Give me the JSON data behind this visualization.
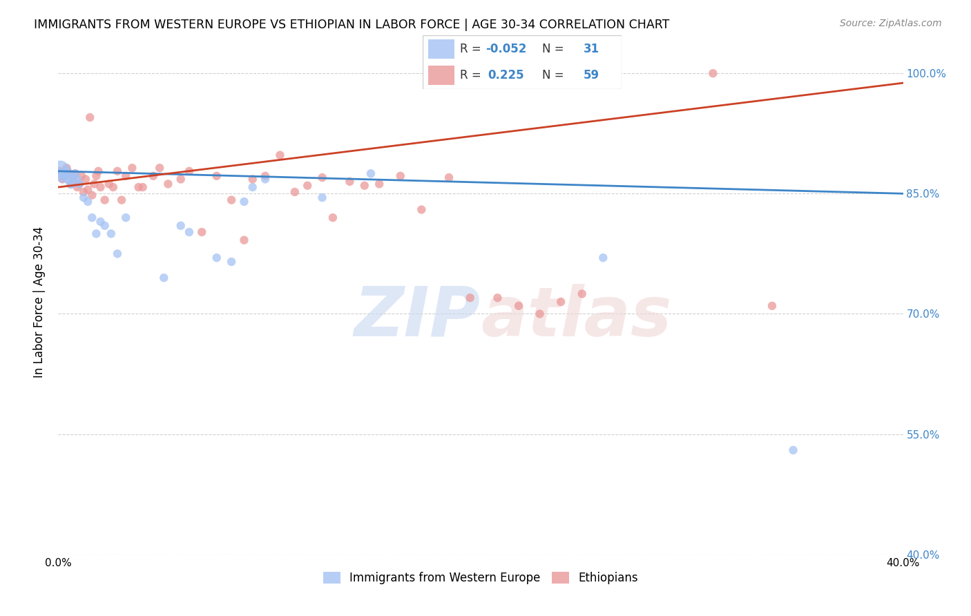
{
  "title": "IMMIGRANTS FROM WESTERN EUROPE VS ETHIOPIAN IN LABOR FORCE | AGE 30-34 CORRELATION CHART",
  "source": "Source: ZipAtlas.com",
  "ylabel": "In Labor Force | Age 30-34",
  "xlim": [
    0.0,
    0.4
  ],
  "ylim": [
    0.4,
    1.03
  ],
  "yticks": [
    0.4,
    0.55,
    0.7,
    0.85,
    1.0
  ],
  "ytick_labels": [
    "40.0%",
    "55.0%",
    "70.0%",
    "85.0%",
    "100.0%"
  ],
  "xticks": [
    0.0,
    0.05,
    0.1,
    0.15,
    0.2,
    0.25,
    0.3,
    0.35,
    0.4
  ],
  "xtick_labels": [
    "0.0%",
    "",
    "",
    "",
    "",
    "",
    "",
    "",
    "40.0%"
  ],
  "blue_color": "#a4c2f4",
  "pink_color": "#ea9999",
  "blue_line_color": "#3d85c8",
  "pink_line_color": "#cc4125",
  "legend_blue_R": "-0.052",
  "legend_blue_N": "31",
  "legend_pink_R": "0.225",
  "legend_pink_N": "59",
  "watermark_zip": "ZIP",
  "watermark_atlas": "atlas",
  "blue_scatter_x": [
    0.001,
    0.002,
    0.003,
    0.004,
    0.005,
    0.006,
    0.007,
    0.008,
    0.009,
    0.01,
    0.012,
    0.014,
    0.016,
    0.018,
    0.02,
    0.022,
    0.025,
    0.028,
    0.032,
    0.05,
    0.058,
    0.062,
    0.075,
    0.082,
    0.088,
    0.092,
    0.098,
    0.125,
    0.148,
    0.258,
    0.348
  ],
  "blue_scatter_y": [
    0.88,
    0.872,
    0.875,
    0.878,
    0.868,
    0.862,
    0.87,
    0.875,
    0.868,
    0.862,
    0.845,
    0.84,
    0.82,
    0.8,
    0.815,
    0.81,
    0.8,
    0.775,
    0.82,
    0.745,
    0.81,
    0.802,
    0.77,
    0.765,
    0.84,
    0.858,
    0.868,
    0.845,
    0.875,
    0.77,
    0.53
  ],
  "blue_scatter_sizes": [
    350,
    200,
    130,
    100,
    120,
    100,
    90,
    85,
    80,
    80,
    80,
    80,
    80,
    80,
    80,
    80,
    80,
    80,
    80,
    80,
    80,
    80,
    80,
    80,
    80,
    80,
    80,
    80,
    80,
    80,
    80
  ],
  "pink_scatter_x": [
    0.001,
    0.002,
    0.003,
    0.004,
    0.005,
    0.006,
    0.007,
    0.008,
    0.009,
    0.01,
    0.011,
    0.012,
    0.013,
    0.014,
    0.015,
    0.016,
    0.017,
    0.018,
    0.019,
    0.02,
    0.022,
    0.024,
    0.026,
    0.028,
    0.03,
    0.032,
    0.035,
    0.038,
    0.04,
    0.045,
    0.048,
    0.052,
    0.058,
    0.062,
    0.068,
    0.075,
    0.082,
    0.088,
    0.092,
    0.098,
    0.105,
    0.112,
    0.118,
    0.125,
    0.13,
    0.138,
    0.145,
    0.152,
    0.162,
    0.172,
    0.185,
    0.195,
    0.208,
    0.218,
    0.228,
    0.238,
    0.248,
    0.31,
    0.338
  ],
  "pink_scatter_y": [
    0.878,
    0.868,
    0.872,
    0.882,
    0.876,
    0.862,
    0.868,
    0.875,
    0.858,
    0.862,
    0.872,
    0.852,
    0.868,
    0.855,
    0.945,
    0.848,
    0.862,
    0.872,
    0.878,
    0.858,
    0.842,
    0.862,
    0.858,
    0.878,
    0.842,
    0.872,
    0.882,
    0.858,
    0.858,
    0.872,
    0.882,
    0.862,
    0.868,
    0.878,
    0.802,
    0.872,
    0.842,
    0.792,
    0.868,
    0.872,
    0.898,
    0.852,
    0.86,
    0.87,
    0.82,
    0.865,
    0.86,
    0.862,
    0.872,
    0.83,
    0.87,
    0.72,
    0.72,
    0.71,
    0.7,
    0.715,
    0.725,
    1.0,
    0.71
  ],
  "pink_scatter_sizes": [
    80,
    80,
    80,
    80,
    80,
    80,
    80,
    80,
    80,
    80,
    80,
    80,
    80,
    80,
    80,
    80,
    80,
    80,
    80,
    80,
    80,
    80,
    80,
    80,
    80,
    80,
    80,
    80,
    80,
    80,
    80,
    80,
    80,
    80,
    80,
    80,
    80,
    80,
    80,
    80,
    80,
    80,
    80,
    80,
    80,
    80,
    80,
    80,
    80,
    80,
    80,
    80,
    80,
    80,
    80,
    80,
    80,
    80,
    80
  ],
  "blue_trend_x0": 0.0,
  "blue_trend_x1": 0.4,
  "blue_trend_y0": 0.878,
  "blue_trend_y1": 0.85,
  "pink_trend_x0": 0.0,
  "pink_trend_x1": 0.4,
  "pink_trend_y0": 0.858,
  "pink_trend_y1": 0.988
}
